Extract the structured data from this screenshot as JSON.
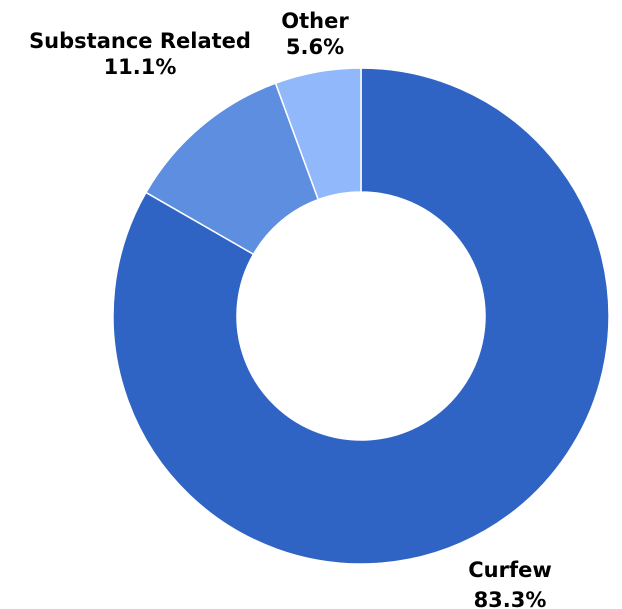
{
  "chart_data": {
    "type": "pie",
    "variant": "donut",
    "title": "",
    "slices": [
      {
        "label": "Curfew",
        "value": 83.3,
        "value_label": "83.3%",
        "color": "#2f64c4"
      },
      {
        "label": "Substance Related",
        "value": 11.1,
        "value_label": "11.1%",
        "color": "#5e8ee0"
      },
      {
        "label": "Other",
        "value": 5.6,
        "value_label": "5.6%",
        "color": "#92b8fc"
      }
    ],
    "start_angle": "12 o'clock",
    "direction": "clockwise",
    "legend": "none",
    "label_color": "#000000",
    "background": "#ffffff"
  }
}
